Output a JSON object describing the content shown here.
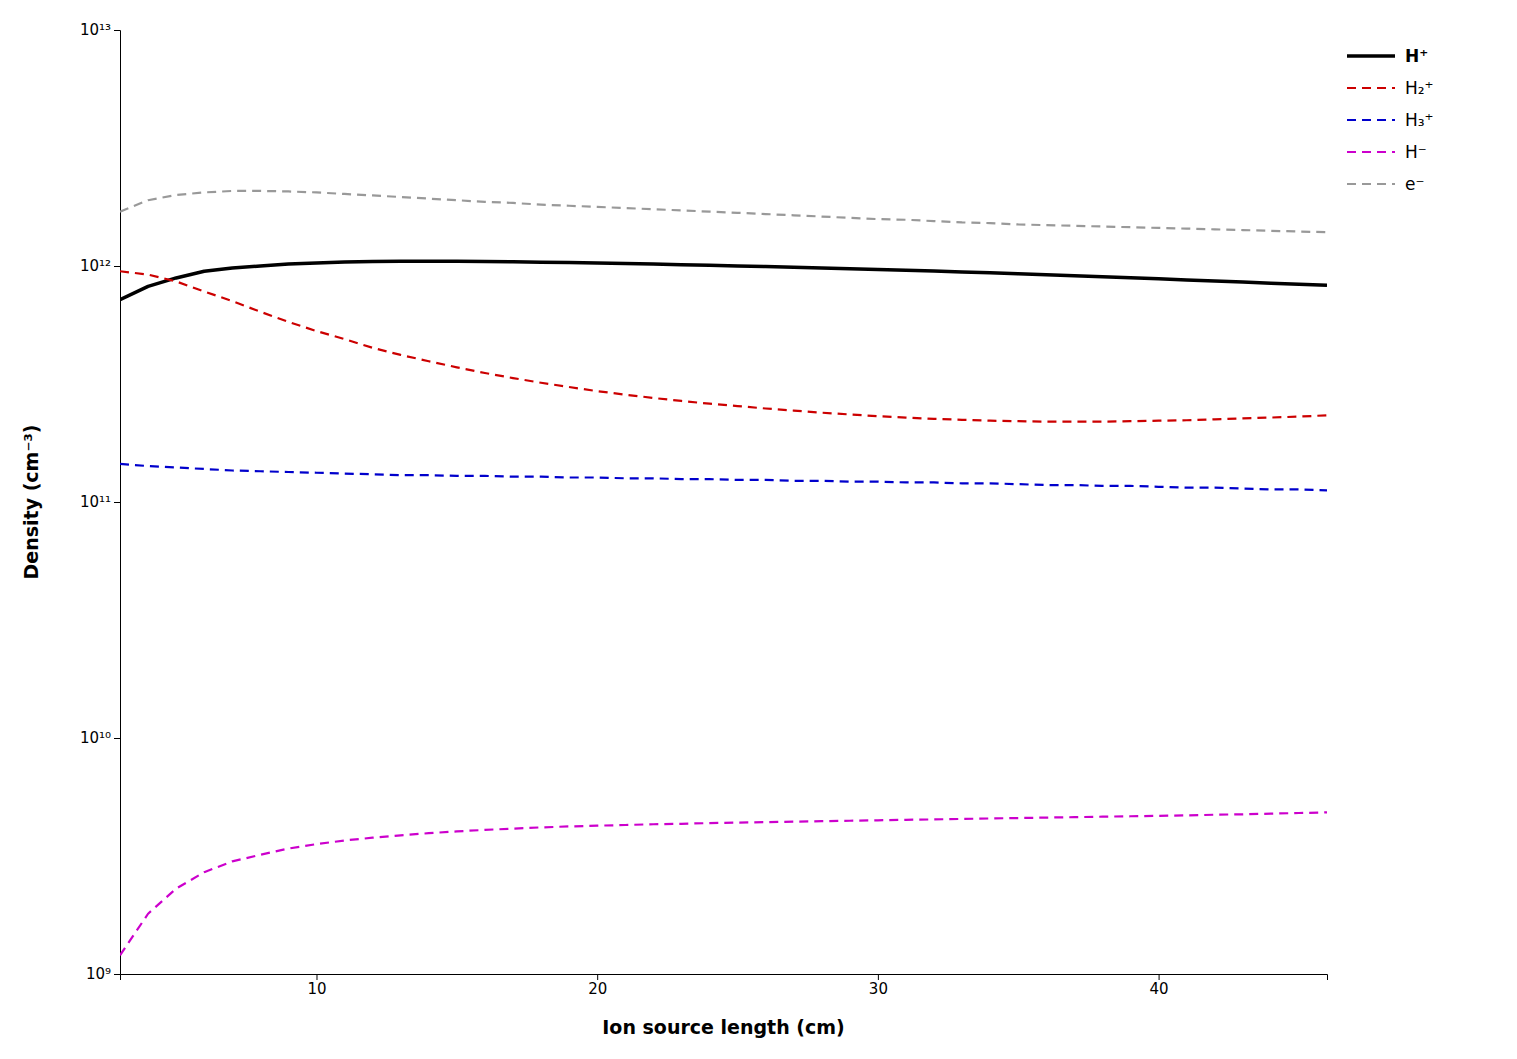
{
  "chart_data": {
    "type": "line",
    "xlabel": "Ion source length (cm)",
    "ylabel": "Density (cm⁻³)",
    "log": "y",
    "grid": false,
    "legend": "upper right",
    "xlim": [
      3,
      46
    ],
    "ylim": [
      1000000000.0,
      10000000000000.0
    ],
    "xticks": [
      10,
      20,
      30,
      40
    ],
    "yticks": [
      {
        "value": 1000000000.0,
        "label": "10⁹"
      },
      {
        "value": 10000000000.0,
        "label": "10¹⁰"
      },
      {
        "value": 100000000000.0,
        "label": "10¹¹"
      },
      {
        "value": 1000000000000.0,
        "label": "10¹²"
      },
      {
        "value": 10000000000000.0,
        "label": "10¹³"
      }
    ],
    "x": [
      3,
      4,
      5,
      6,
      7,
      8,
      9,
      10,
      11,
      12,
      13,
      14,
      15,
      16,
      17,
      18,
      19,
      20,
      21,
      22,
      23,
      24,
      25,
      26,
      27,
      28,
      29,
      30,
      31,
      32,
      33,
      34,
      35,
      36,
      37,
      38,
      39,
      40,
      41,
      42,
      43,
      44,
      45,
      46
    ],
    "series": [
      {
        "name": "H⁺",
        "color": "#000000",
        "line_style": "solid",
        "values": [
          720000000000.0,
          820000000000.0,
          890000000000.0,
          950000000000.0,
          980000000000.0,
          1000000000000.0,
          1020000000000.0,
          1030000000000.0,
          1040000000000.0,
          1045000000000.0,
          1048000000000.0,
          1048000000000.0,
          1047000000000.0,
          1045000000000.0,
          1042000000000.0,
          1038000000000.0,
          1034000000000.0,
          1030000000000.0,
          1025000000000.0,
          1019000000000.0,
          1013000000000.0,
          1007000000000.0,
          1001000000000.0,
          994000000000.0,
          988000000000.0,
          981000000000.0,
          974000000000.0,
          967000000000.0,
          960000000000.0,
          952000000000.0,
          944000000000.0,
          936000000000.0,
          927000000000.0,
          918000000000.0,
          909000000000.0,
          900000000000.0,
          891000000000.0,
          882000000000.0,
          873000000000.0,
          864000000000.0,
          855000000000.0,
          846000000000.0,
          837000000000.0,
          828000000000.0
        ]
      },
      {
        "name": "H₂⁺",
        "color": "#cc0000",
        "line_style": "dashed",
        "values": [
          950000000000.0,
          920000000000.0,
          860000000000.0,
          780000000000.0,
          710000000000.0,
          640000000000.0,
          580000000000.0,
          530000000000.0,
          490000000000.0,
          450000000000.0,
          420000000000.0,
          395000000000.0,
          372000000000.0,
          352000000000.0,
          335000000000.0,
          320000000000.0,
          307000000000.0,
          295000000000.0,
          285000000000.0,
          276000000000.0,
          268000000000.0,
          261000000000.0,
          255000000000.0,
          249000000000.0,
          244000000000.0,
          239000000000.0,
          235000000000.0,
          231000000000.0,
          228000000000.0,
          225000000000.0,
          223000000000.0,
          221000000000.0,
          220000000000.0,
          219000000000.0,
          219000000000.0,
          219000000000.0,
          220000000000.0,
          221000000000.0,
          222000000000.0,
          224000000000.0,
          226000000000.0,
          228000000000.0,
          230000000000.0,
          233000000000.0
        ]
      },
      {
        "name": "H₃⁺",
        "color": "#0000cc",
        "line_style": "dashed",
        "values": [
          145000000000.0,
          142000000000.0,
          140000000000.0,
          138000000000.0,
          136000000000.0,
          135000000000.0,
          134000000000.0,
          133000000000.0,
          132000000000.0,
          131000000000.0,
          130000000000.0,
          130000000000.0,
          129000000000.0,
          129000000000.0,
          128000000000.0,
          128000000000.0,
          127000000000.0,
          127000000000.0,
          126000000000.0,
          126000000000.0,
          125000000000.0,
          125000000000.0,
          124000000000.0,
          124000000000.0,
          123000000000.0,
          123000000000.0,
          122000000000.0,
          122000000000.0,
          121000000000.0,
          121000000000.0,
          120000000000.0,
          120000000000.0,
          119000000000.0,
          118000000000.0,
          118000000000.0,
          117000000000.0,
          117000000000.0,
          116000000000.0,
          115000000000.0,
          115000000000.0,
          114000000000.0,
          113000000000.0,
          113000000000.0,
          112000000000.0
        ]
      },
      {
        "name": "H⁻",
        "color": "#cc00cc",
        "line_style": "dashed",
        "values": [
          1200000000.0,
          1800000000.0,
          2300000000.0,
          2700000000.0,
          3000000000.0,
          3200000000.0,
          3400000000.0,
          3550000000.0,
          3680000000.0,
          3780000000.0,
          3870000000.0,
          3950000000.0,
          4020000000.0,
          4080000000.0,
          4130000000.0,
          4180000000.0,
          4220000000.0,
          4250000000.0,
          4280000000.0,
          4310000000.0,
          4330000000.0,
          4360000000.0,
          4380000000.0,
          4400000000.0,
          4420000000.0,
          4440000000.0,
          4460000000.0,
          4480000000.0,
          4500000000.0,
          4520000000.0,
          4540000000.0,
          4560000000.0,
          4580000000.0,
          4600000000.0,
          4620000000.0,
          4640000000.0,
          4660000000.0,
          4680000000.0,
          4700000000.0,
          4730000000.0,
          4750000000.0,
          4780000000.0,
          4810000000.0,
          4840000000.0
        ]
      },
      {
        "name": "e⁻",
        "color": "#999999",
        "line_style": "dashed",
        "values": [
          1700000000000.0,
          1900000000000.0,
          2000000000000.0,
          2050000000000.0,
          2080000000000.0,
          2080000000000.0,
          2070000000000.0,
          2050000000000.0,
          2020000000000.0,
          1990000000000.0,
          1960000000000.0,
          1930000000000.0,
          1900000000000.0,
          1870000000000.0,
          1850000000000.0,
          1820000000000.0,
          1800000000000.0,
          1780000000000.0,
          1760000000000.0,
          1740000000000.0,
          1720000000000.0,
          1700000000000.0,
          1680000000000.0,
          1660000000000.0,
          1640000000000.0,
          1620000000000.0,
          1600000000000.0,
          1580000000000.0,
          1570000000000.0,
          1550000000000.0,
          1530000000000.0,
          1520000000000.0,
          1500000000000.0,
          1490000000000.0,
          1480000000000.0,
          1470000000000.0,
          1460000000000.0,
          1450000000000.0,
          1440000000000.0,
          1430000000000.0,
          1420000000000.0,
          1410000000000.0,
          1400000000000.0,
          1390000000000.0
        ]
      }
    ]
  }
}
